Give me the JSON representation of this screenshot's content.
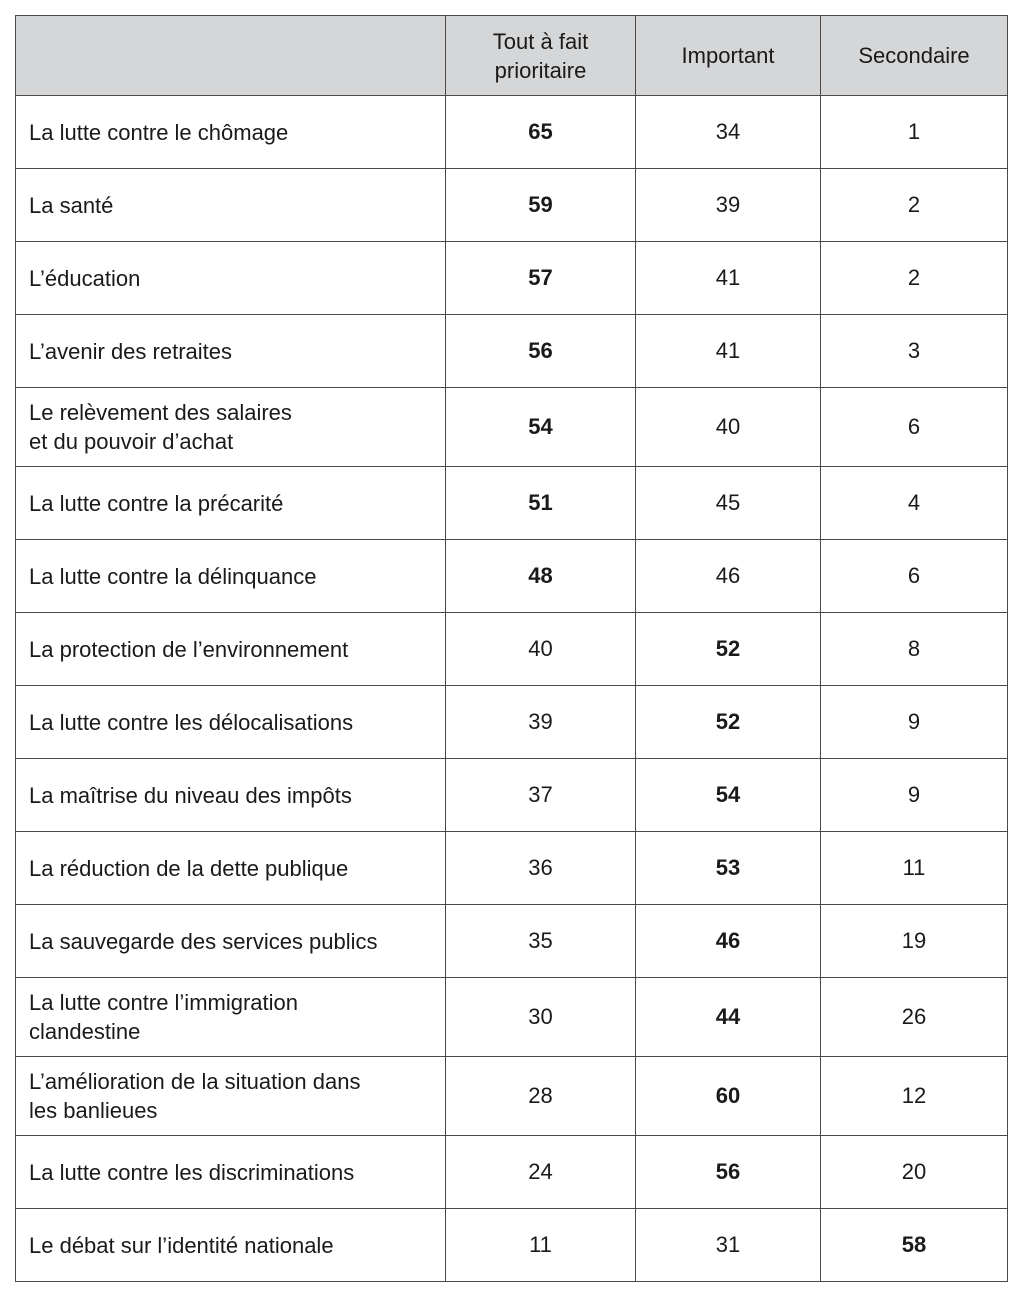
{
  "table": {
    "headers": [
      "",
      "Tout à fait\nprioritaire",
      "Important",
      "Secondaire"
    ],
    "rows": [
      {
        "label": "La lutte contre le chômage",
        "values": [
          65,
          34,
          1
        ],
        "bold": 0
      },
      {
        "label": "La santé",
        "values": [
          59,
          39,
          2
        ],
        "bold": 0
      },
      {
        "label": "L’éducation",
        "values": [
          57,
          41,
          2
        ],
        "bold": 0
      },
      {
        "label": "L’avenir des retraites",
        "values": [
          56,
          41,
          3
        ],
        "bold": 0
      },
      {
        "label": "Le relèvement des salaires\net du pouvoir d’achat",
        "values": [
          54,
          40,
          6
        ],
        "bold": 0
      },
      {
        "label": "La lutte contre la précarité",
        "values": [
          51,
          45,
          4
        ],
        "bold": 0
      },
      {
        "label": "La lutte contre la délinquance",
        "values": [
          48,
          46,
          6
        ],
        "bold": 0
      },
      {
        "label": "La protection de l’environnement",
        "values": [
          40,
          52,
          8
        ],
        "bold": 1
      },
      {
        "label": "La lutte contre les délocalisations",
        "values": [
          39,
          52,
          9
        ],
        "bold": 1
      },
      {
        "label": "La maîtrise du niveau des impôts",
        "values": [
          37,
          54,
          9
        ],
        "bold": 1
      },
      {
        "label": "La réduction de la dette publique",
        "values": [
          36,
          53,
          11
        ],
        "bold": 1
      },
      {
        "label": "La sauvegarde des services publics",
        "values": [
          35,
          46,
          19
        ],
        "bold": 1
      },
      {
        "label": "La lutte contre l’immigration\nclandestine",
        "values": [
          30,
          44,
          26
        ],
        "bold": 1
      },
      {
        "label": "L’amélioration de la situation dans\nles banlieues",
        "values": [
          28,
          60,
          12
        ],
        "bold": 1
      },
      {
        "label": "La lutte contre les discriminations",
        "values": [
          24,
          56,
          20
        ],
        "bold": 1
      },
      {
        "label": "Le débat sur l’identité nationale",
        "values": [
          11,
          31,
          58
        ],
        "bold": 2
      }
    ]
  },
  "colors": {
    "header_bg": "#d5d6d8",
    "border": "#4a4a4a"
  }
}
